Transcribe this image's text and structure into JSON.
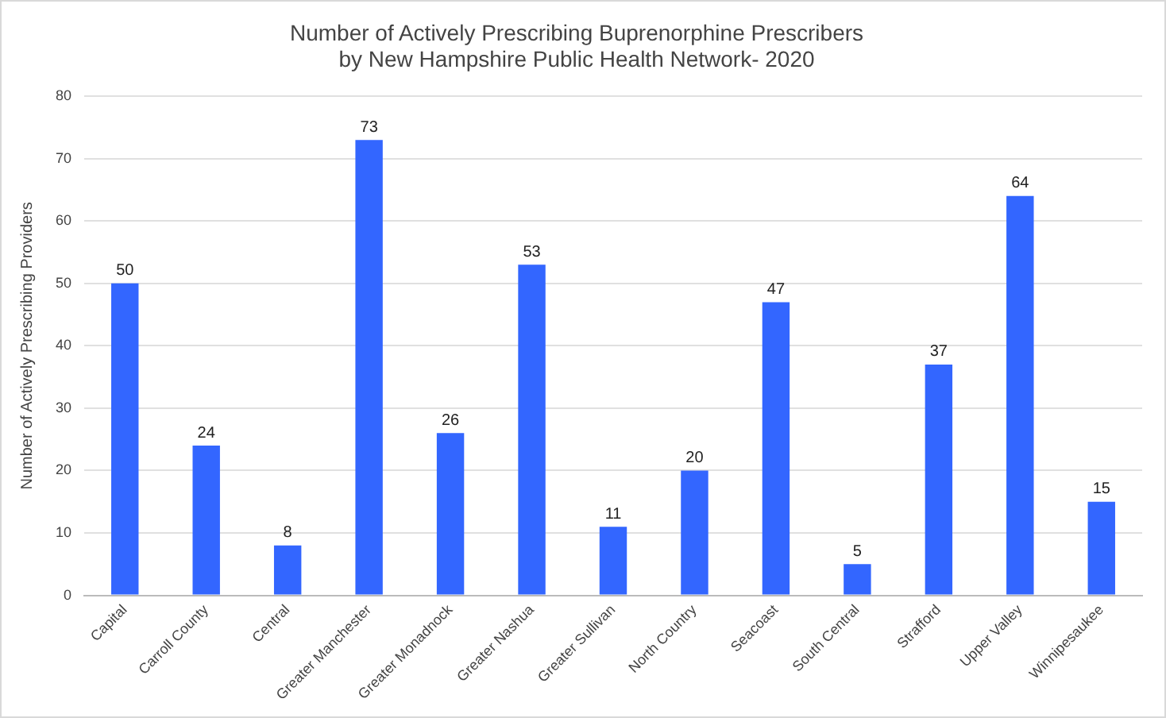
{
  "chart_data": {
    "type": "bar",
    "title": "Number of Actively Prescribing Buprenorphine Prescribers\nby New Hampshire Public Health Network- 2020",
    "ylabel": "Number of Actively Prescribing Providers",
    "categories": [
      "Capital",
      "Carroll County",
      "Central",
      "Greater Manchester",
      "Greater Monadnock",
      "Greater Nashua",
      "Greater Sullivan",
      "North Country",
      "Seacoast",
      "South Central",
      "Strafford",
      "Upper Valley",
      "Winnipesaukee"
    ],
    "values": [
      50,
      24,
      8,
      73,
      26,
      53,
      11,
      20,
      47,
      5,
      37,
      64,
      15
    ],
    "color": "#3366ff",
    "ylim": [
      0,
      80
    ],
    "yticks": [
      0,
      10,
      20,
      30,
      40,
      50,
      60,
      70,
      80
    ],
    "grid": "y",
    "data_labels": true,
    "legend": false
  }
}
